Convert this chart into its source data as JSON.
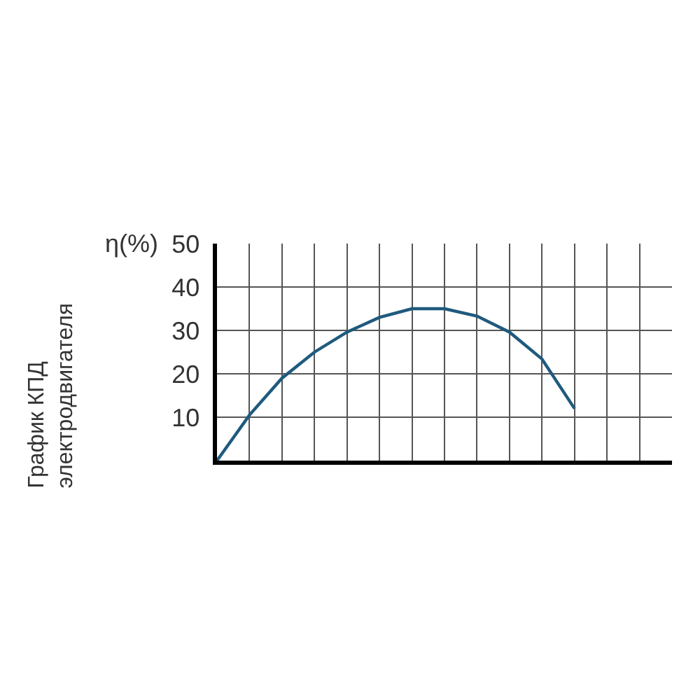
{
  "chart_data": {
    "type": "line",
    "title": "График КПД\nэлектродвигателя",
    "ylabel": "η(%)",
    "categories": [
      null,
      null,
      null,
      null,
      null,
      null,
      null,
      null,
      null,
      null,
      null,
      null,
      null,
      null,
      null
    ],
    "series": [
      {
        "color": "#1f5a7e",
        "values": [
          0,
          10.5,
          19,
          25,
          29.6,
          33,
          35,
          35,
          33.3,
          29.6,
          23.4,
          12,
          null,
          null,
          null
        ]
      }
    ],
    "ylim": [
      0,
      50
    ],
    "yticks": [
      {
        "value": 0,
        "label": null
      },
      10,
      20,
      30,
      40,
      50
    ],
    "grid": true,
    "tick_labels": "y",
    "marker": "none",
    "line_style": "solid"
  }
}
